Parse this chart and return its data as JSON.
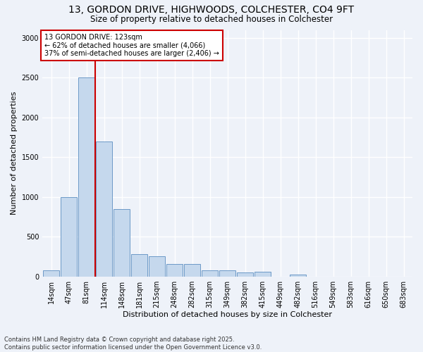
{
  "title_line1": "13, GORDON DRIVE, HIGHWOODS, COLCHESTER, CO4 9FT",
  "title_line2": "Size of property relative to detached houses in Colchester",
  "xlabel": "Distribution of detached houses by size in Colchester",
  "ylabel": "Number of detached properties",
  "categories": [
    "14sqm",
    "47sqm",
    "81sqm",
    "114sqm",
    "148sqm",
    "181sqm",
    "215sqm",
    "248sqm",
    "282sqm",
    "315sqm",
    "349sqm",
    "382sqm",
    "415sqm",
    "449sqm",
    "482sqm",
    "516sqm",
    "549sqm",
    "583sqm",
    "616sqm",
    "650sqm",
    "683sqm"
  ],
  "values": [
    75,
    1000,
    2500,
    1700,
    850,
    280,
    250,
    155,
    155,
    75,
    75,
    50,
    55,
    0,
    25,
    0,
    0,
    0,
    0,
    0,
    0
  ],
  "bar_color": "#c5d8ed",
  "bar_edge_color": "#5b8dc0",
  "background_color": "#eef2f9",
  "grid_color": "#ffffff",
  "vline_color": "#cc0000",
  "vline_position": 2.5,
  "annotation_title": "13 GORDON DRIVE: 123sqm",
  "annotation_line2": "← 62% of detached houses are smaller (4,066)",
  "annotation_line3": "37% of semi-detached houses are larger (2,406) →",
  "annotation_box_color": "#ffffff",
  "annotation_box_edge_color": "#cc0000",
  "ylim": [
    0,
    3100
  ],
  "yticks": [
    0,
    500,
    1000,
    1500,
    2000,
    2500,
    3000
  ],
  "title_fontsize": 10,
  "subtitle_fontsize": 8.5,
  "tick_fontsize": 7,
  "ylabel_fontsize": 8,
  "xlabel_fontsize": 8,
  "footnote_fontsize": 6,
  "annotation_fontsize": 7,
  "footnote_line1": "Contains HM Land Registry data © Crown copyright and database right 2025.",
  "footnote_line2": "Contains public sector information licensed under the Open Government Licence v3.0."
}
